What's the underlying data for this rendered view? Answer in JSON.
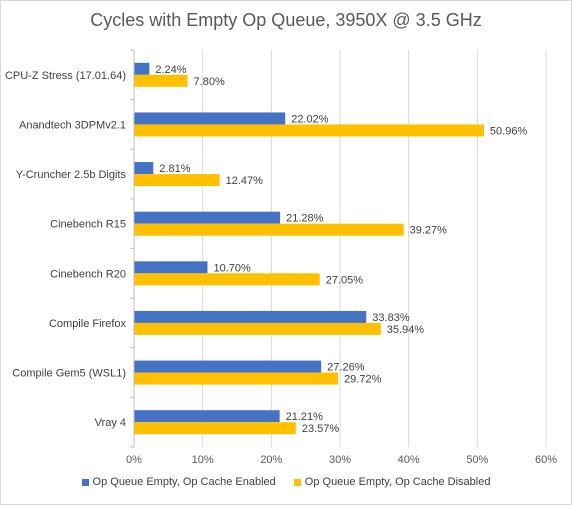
{
  "chart_data": {
    "type": "bar",
    "orientation": "horizontal",
    "title": "Cycles with Empty Op Queue, 3950X @ 3.5 GHz",
    "categories": [
      "CPU-Z Stress (17.01.64)",
      "Anandtech 3DPMv2.1",
      "Y-Cruncher 2.5b Digits",
      "Cinebench R15",
      "Cinebench R20",
      "Compile Firefox",
      "Compile Gem5 (WSL1)",
      "Vray 4"
    ],
    "series": [
      {
        "name": "Op Queue Empty, Op Cache Enabled",
        "color": "#4472c4",
        "values": [
          2.24,
          22.02,
          2.81,
          21.28,
          10.7,
          33.83,
          27.26,
          21.21
        ],
        "labels": [
          "2.24%",
          "22.02%",
          "2.81%",
          "21.28%",
          "10.70%",
          "33.83%",
          "27.26%",
          "21.21%"
        ]
      },
      {
        "name": "Op Queue Empty, Op Cache Disabled",
        "color": "#ffc000",
        "values": [
          7.8,
          50.96,
          12.47,
          39.27,
          27.05,
          35.94,
          29.72,
          23.57
        ],
        "labels": [
          "7.80%",
          "50.96%",
          "12.47%",
          "39.27%",
          "27.05%",
          "35.94%",
          "29.72%",
          "23.57%"
        ]
      }
    ],
    "xlim": [
      0,
      60
    ],
    "xticks": [
      0,
      10,
      20,
      30,
      40,
      50,
      60
    ],
    "xtick_labels": [
      "0%",
      "10%",
      "20%",
      "30%",
      "40%",
      "50%",
      "60%"
    ],
    "grid": true,
    "legend_position": "bottom"
  }
}
